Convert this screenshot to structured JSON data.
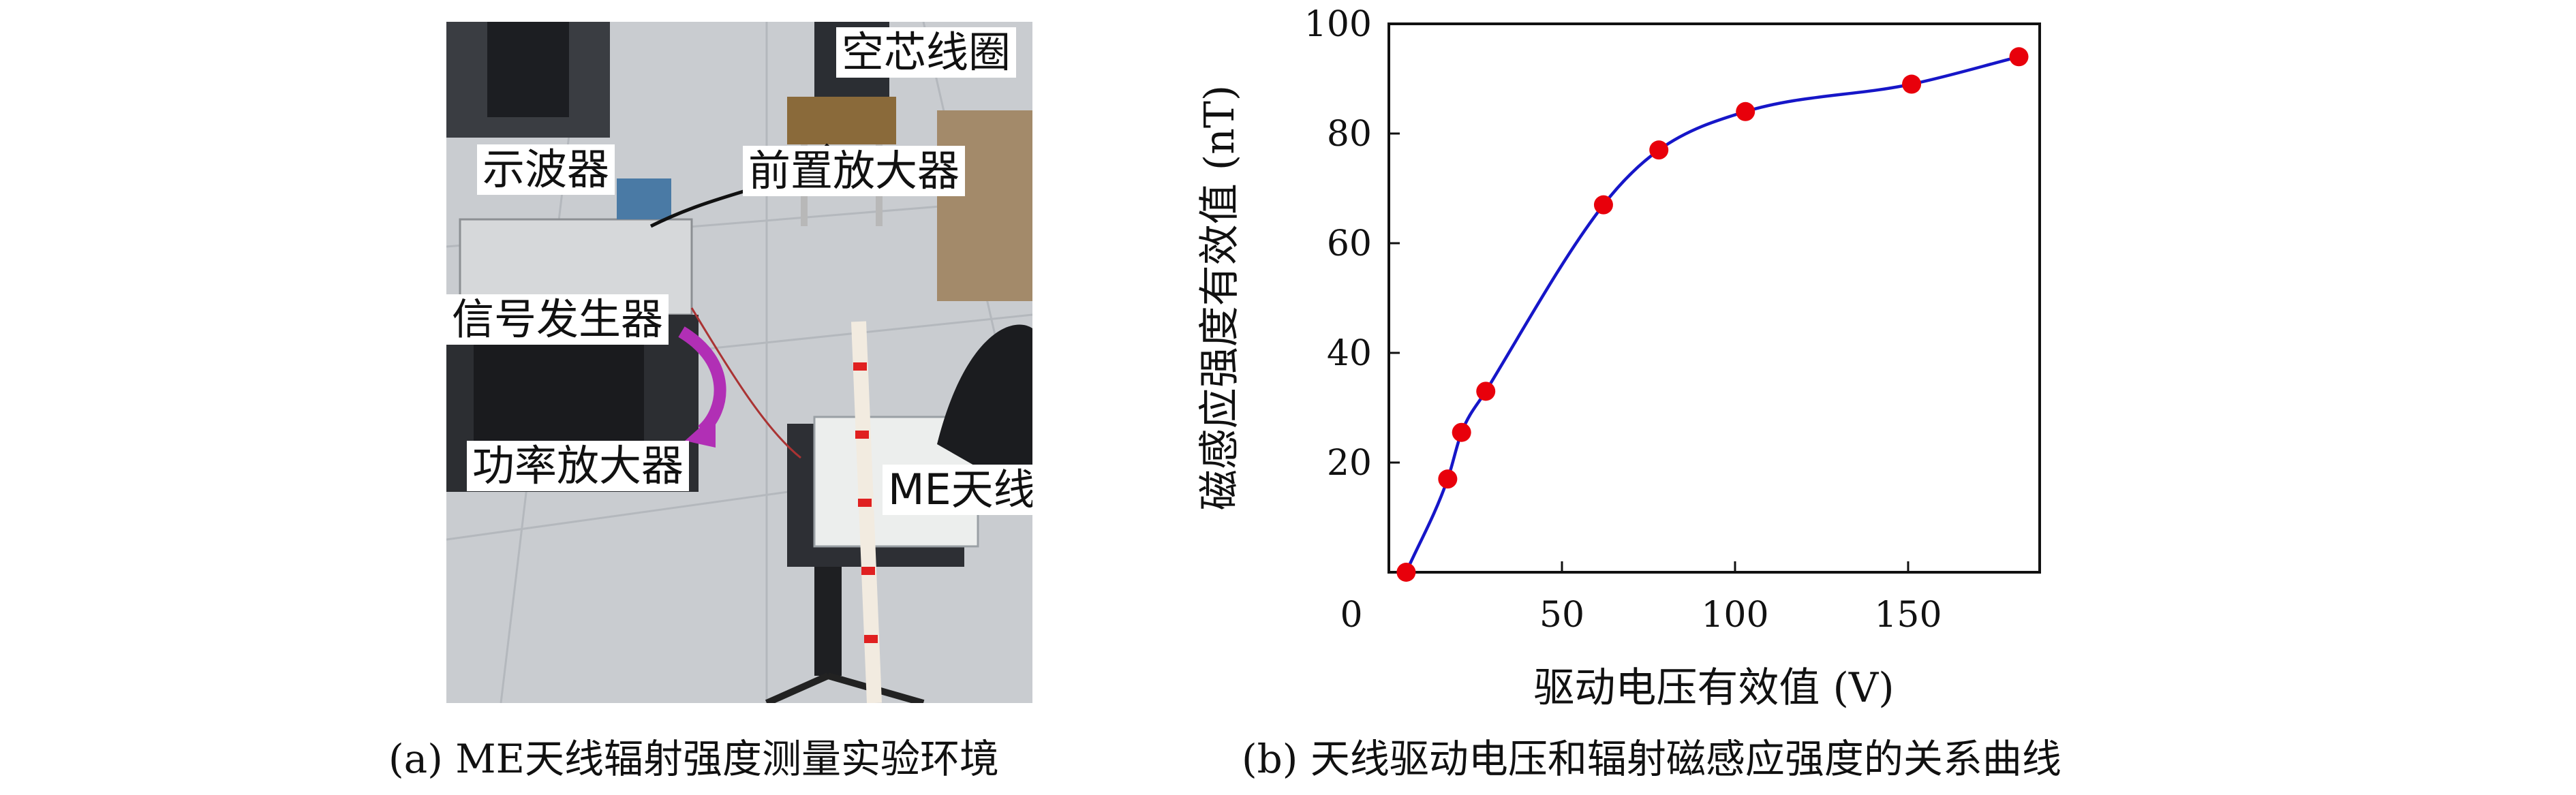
{
  "photo": {
    "labels": {
      "air_coil": "空芯线圈",
      "oscilloscope": "示波器",
      "preamp": "前置放大器",
      "signal_gen": "信号发生器",
      "power_amp": "功率放大器",
      "me_antenna": "ME天线"
    },
    "caption": "(a) ME天线辐射强度测量实验环境"
  },
  "chart_caption": "(b) 天线驱动电压和辐射磁感应强度的关系曲线",
  "chart_data": {
    "type": "line",
    "xlabel": "驱动电压有效值 (V)",
    "ylabel": "磁感应强度有效值 (nT)",
    "xlim": [
      0,
      188
    ],
    "ylim": [
      0,
      100
    ],
    "xticks": [
      0,
      50,
      100,
      150
    ],
    "yticks": [
      20,
      40,
      60,
      80,
      100
    ],
    "grid": false,
    "series": [
      {
        "marker_color": "#e8000b",
        "line_color": "#1616c8",
        "x": [
          5,
          17,
          21,
          28,
          62,
          78,
          103,
          151,
          182
        ],
        "y": [
          0,
          17,
          25.5,
          33,
          67,
          77,
          84,
          89,
          94
        ]
      }
    ]
  }
}
